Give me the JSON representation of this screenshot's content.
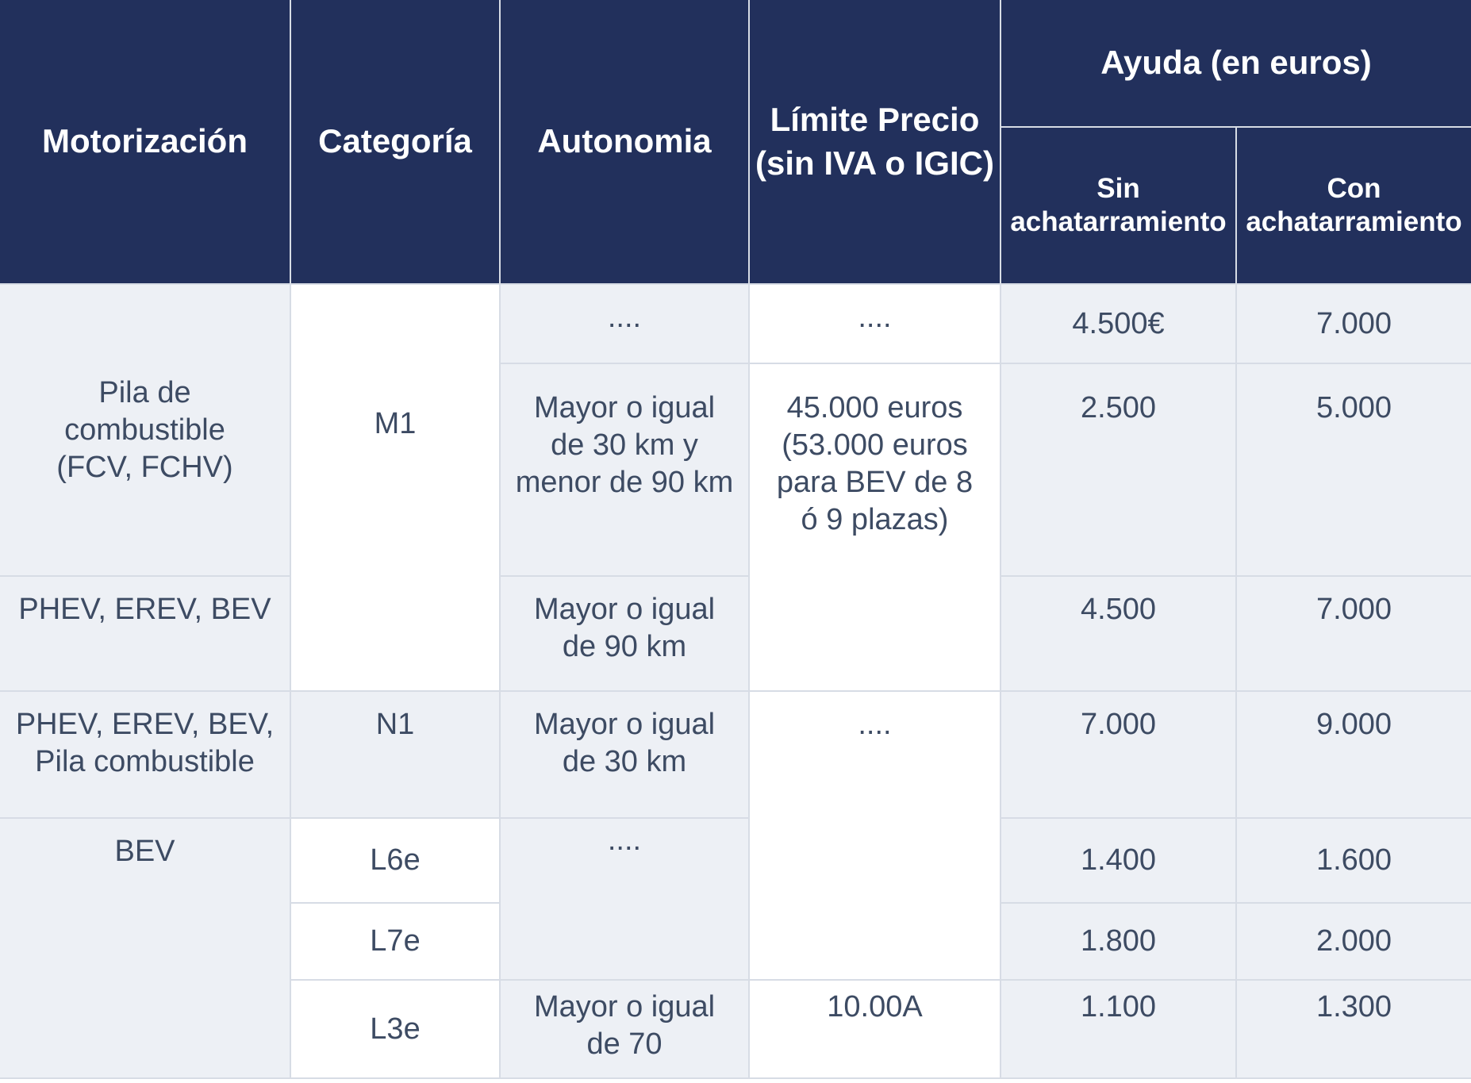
{
  "header": {
    "motorizacion": "Motorización",
    "categoria": "Categoría",
    "autonomia": "Autonomia",
    "limite_precio": "Límite Precio",
    "limite_precio_sub": "(sin IVA o IGIC)",
    "ayuda": "Ayuda (en euros)",
    "sin_1": "Sin",
    "sin_2": "achatarramiento",
    "con_1": "Con",
    "con_2": "achatarramiento"
  },
  "cells": {
    "motor_pila": [
      "Pila de",
      "combustible",
      "(FCV, FCHV)"
    ],
    "motor_phev": "PHEV, EREV, BEV",
    "motor_phev_pila": [
      "PHEV, EREV, BEV,",
      "Pila combustible"
    ],
    "motor_bev": "BEV",
    "cat_m1": "M1",
    "cat_n1": "N1",
    "cat_l6e": "L6e",
    "cat_l7e": "L7e",
    "cat_l3e": "L3e",
    "aut_r1": "....",
    "aut_r2": [
      "Mayor o igual",
      "de 30 km y",
      "menor de 90 km"
    ],
    "aut_r3": [
      "Mayor o igual",
      "de 90 km"
    ],
    "aut_r4": [
      "Mayor o igual",
      "de 30 km"
    ],
    "aut_r5": "....",
    "aut_r7": [
      "Mayor o igual",
      "de 70"
    ],
    "precio_r1": "....",
    "precio_r2": [
      "45.000 euros",
      "(53.000 euros",
      "para BEV de 8",
      "ó 9 plazas)"
    ],
    "precio_r4": "....",
    "precio_r7": "10.00A"
  },
  "ayudas": {
    "r1": {
      "sin": "4.500€",
      "con": "7.000"
    },
    "r2": {
      "sin": "2.500",
      "con": "5.000"
    },
    "r3": {
      "sin": "4.500",
      "con": "7.000"
    },
    "r4": {
      "sin": "7.000",
      "con": "9.000"
    },
    "r5": {
      "sin": "1.400",
      "con": "1.600"
    },
    "r6": {
      "sin": "1.800",
      "con": "2.000"
    },
    "r7": {
      "sin": "1.100",
      "con": "1.300"
    }
  },
  "colors": {
    "header_bg": "#22305c",
    "row_gray": "#edf0f5",
    "text": "#3d4b63",
    "border": "#d7dce5"
  }
}
